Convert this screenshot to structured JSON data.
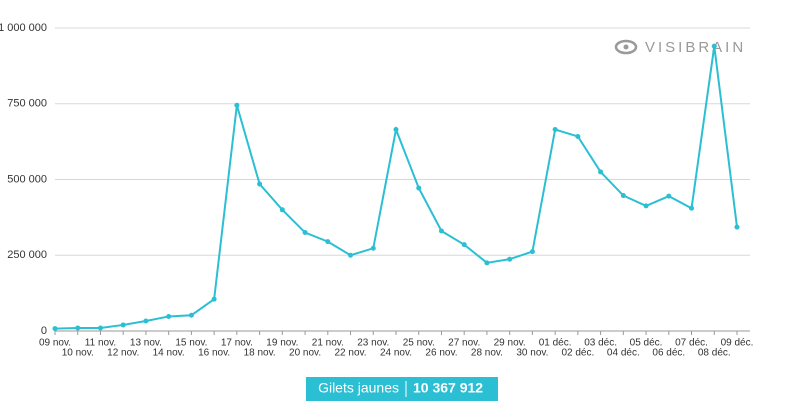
{
  "chart_data": {
    "type": "line",
    "watermark": "VISIBRAIN",
    "categories": [
      "09 nov.",
      "10 nov.",
      "11 nov.",
      "12 nov.",
      "13 nov.",
      "14 nov.",
      "15 nov.",
      "16 nov.",
      "17 nov.",
      "18 nov.",
      "19 nov.",
      "20 nov.",
      "21 nov.",
      "22 nov.",
      "23 nov.",
      "24 nov.",
      "25 nov.",
      "26 nov.",
      "27 nov.",
      "28 nov.",
      "29 nov.",
      "30 nov.",
      "01 déc.",
      "02 déc.",
      "03 déc.",
      "04 déc.",
      "05 déc.",
      "06 déc.",
      "07 déc.",
      "08 déc.",
      "09 déc."
    ],
    "series": [
      {
        "name": "Gilets jaunes",
        "color": "#2bbfd4",
        "values": [
          8000,
          10000,
          10000,
          20000,
          33000,
          48000,
          52000,
          105000,
          745000,
          485000,
          400000,
          325000,
          295000,
          250000,
          273000,
          665000,
          472000,
          330000,
          285000,
          225000,
          237000,
          262000,
          665000,
          642000,
          525000,
          447000,
          413000,
          445000,
          405000,
          940000,
          343000
        ]
      }
    ],
    "total": {
      "value": 10367912,
      "label": "10 367 912"
    },
    "ylim": [
      0,
      1000000
    ],
    "yticks": [
      0,
      {
        "value": 250000,
        "label": "250 000"
      },
      {
        "value": 500000,
        "label": "500 000"
      },
      {
        "value": 750000,
        "label": "750 000"
      },
      {
        "value": 1000000,
        "label": "1 000 000"
      }
    ],
    "grid": true
  }
}
